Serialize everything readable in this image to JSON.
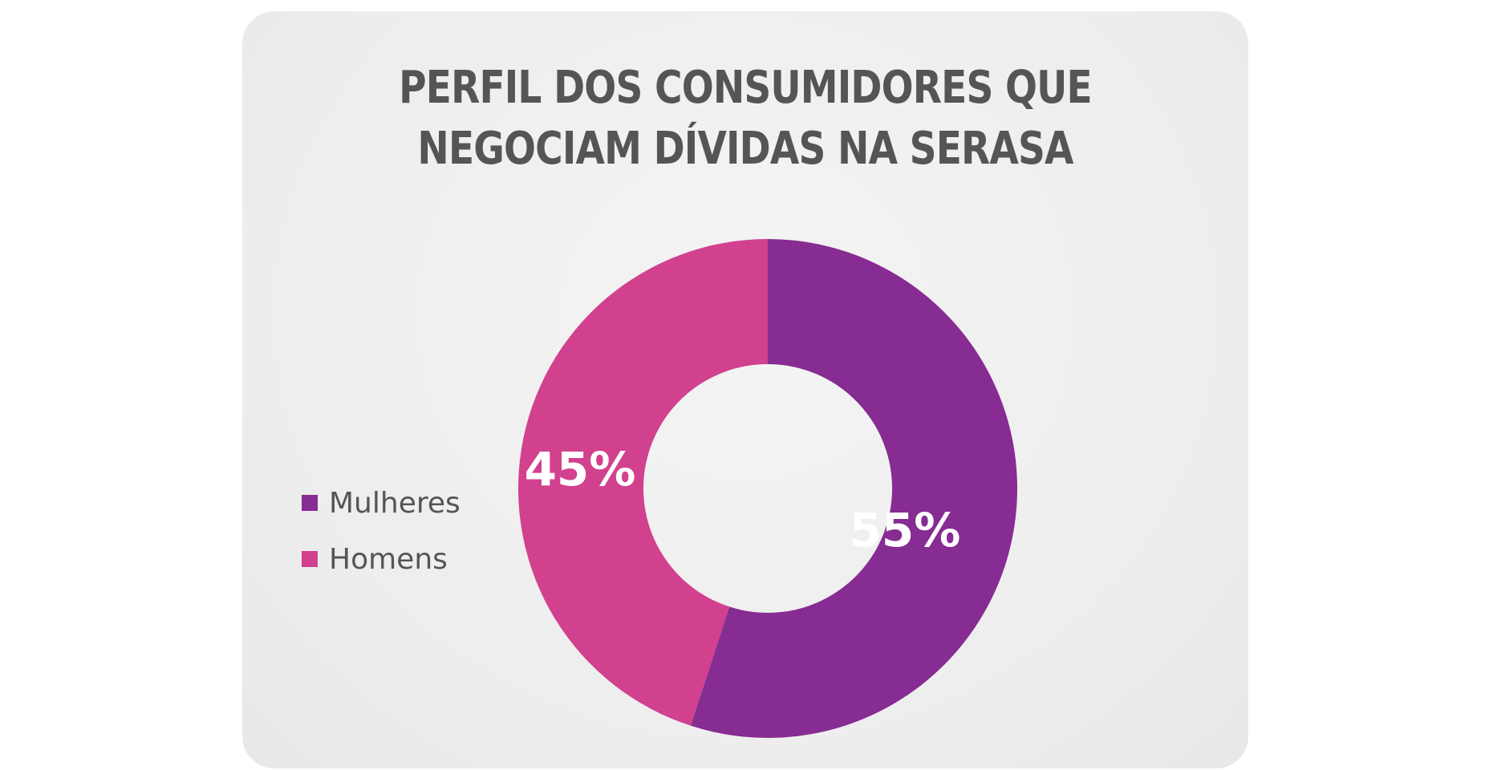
{
  "chart_data": {
    "type": "pie",
    "title": "PERFIL DOS CONSUMIDORES QUE NEGOCIAM DÍVIDAS NA SERASA",
    "title_lines": [
      "PERFIL DOS CONSUMIDORES QUE",
      "NEGOCIAM DÍVIDAS NA SERASA"
    ],
    "donut": true,
    "categories": [
      "Mulheres",
      "Homens"
    ],
    "values": [
      55,
      45
    ],
    "value_labels": [
      "55%",
      "45%"
    ],
    "colors": [
      "#872c92",
      "#d1418e"
    ],
    "legend_position": "left"
  }
}
